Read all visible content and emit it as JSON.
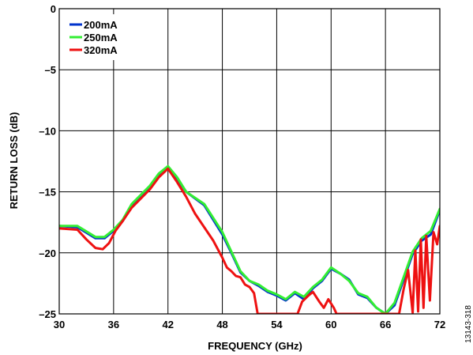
{
  "chart_data": {
    "type": "line",
    "xlabel": "FREQUENCY (GHz)",
    "ylabel": "RETURN LOSS (dB)",
    "xlim": [
      30,
      72
    ],
    "ylim": [
      -25,
      0
    ],
    "x_ticks": [
      "30",
      "36",
      "42",
      "48",
      "54",
      "60",
      "66",
      "72"
    ],
    "y_ticks": [
      "0",
      "–5",
      "–10",
      "–15",
      "–20",
      "–25"
    ],
    "x_tick_values": [
      30,
      36,
      42,
      48,
      54,
      60,
      66,
      72
    ],
    "y_tick_values": [
      0,
      -5,
      -10,
      -15,
      -20,
      -25
    ],
    "grid": true,
    "legend_position": "top-left",
    "figure_id": "13143-318",
    "series": [
      {
        "name": "200mA",
        "color": "#0033cc",
        "x": [
          30,
          32,
          34,
          35,
          36,
          37,
          38,
          40,
          41,
          42,
          43,
          44,
          46,
          48,
          49,
          50,
          51,
          52,
          53,
          54,
          55,
          56,
          57,
          58,
          59,
          60,
          61,
          62,
          63,
          64,
          65,
          66,
          67,
          68,
          69,
          70,
          71,
          72
        ],
        "y": [
          -17.8,
          -17.9,
          -18.8,
          -18.8,
          -18.2,
          -17.4,
          -16.2,
          -14.6,
          -13.6,
          -13.0,
          -13.9,
          -15.0,
          -16.1,
          -18.5,
          -20.0,
          -21.6,
          -22.3,
          -22.7,
          -23.2,
          -23.5,
          -23.9,
          -23.3,
          -23.8,
          -22.9,
          -22.3,
          -21.3,
          -21.7,
          -22.2,
          -23.4,
          -23.7,
          -24.5,
          -25.0,
          -24.3,
          -22.2,
          -20.1,
          -19.0,
          -18.5,
          -16.5
        ]
      },
      {
        "name": "250mA",
        "color": "#33ee33",
        "x": [
          30,
          32,
          34,
          35,
          36,
          37,
          38,
          40,
          41,
          42,
          43,
          44,
          46,
          48,
          49,
          50,
          51,
          52,
          53,
          54,
          55,
          56,
          57,
          58,
          59,
          60,
          61,
          62,
          63,
          64,
          65,
          66,
          67,
          68,
          69,
          70,
          71,
          72
        ],
        "y": [
          -17.8,
          -17.8,
          -18.7,
          -18.7,
          -18.1,
          -17.3,
          -16.0,
          -14.5,
          -13.5,
          -12.9,
          -13.8,
          -15.0,
          -16.0,
          -18.3,
          -19.9,
          -21.5,
          -22.3,
          -22.6,
          -23.1,
          -23.4,
          -23.8,
          -23.2,
          -23.6,
          -22.8,
          -22.2,
          -21.2,
          -21.7,
          -22.3,
          -23.3,
          -23.6,
          -24.5,
          -25.0,
          -24.1,
          -22.0,
          -19.9,
          -18.8,
          -18.2,
          -16.4
        ]
      },
      {
        "name": "320mA",
        "color": "#ee1111",
        "x": [
          30,
          32,
          33,
          34,
          34.8,
          35.5,
          36.2,
          37,
          38,
          40,
          41,
          42,
          43,
          44,
          45,
          46,
          47,
          48,
          48.5,
          49,
          49.5,
          50,
          50.5,
          51,
          51.5,
          51.9,
          56.3,
          56.8,
          57.5,
          58,
          58.7,
          59.2,
          59.7,
          60.3,
          60.6,
          67.5,
          68,
          68.5,
          69,
          69.3,
          69.6,
          69.9,
          70.2,
          70.5,
          70.9,
          71.3,
          71.7,
          72
        ],
        "y": [
          -18.0,
          -18.1,
          -18.9,
          -19.6,
          -19.7,
          -19.2,
          -18.2,
          -17.4,
          -16.3,
          -14.8,
          -13.8,
          -13.1,
          -14.2,
          -15.4,
          -16.8,
          -17.9,
          -19.0,
          -20.4,
          -21.2,
          -21.5,
          -21.9,
          -22.0,
          -22.6,
          -22.8,
          -23.3,
          -25.0,
          -25.0,
          -24.0,
          -23.5,
          -23.2,
          -24.0,
          -24.5,
          -23.8,
          -24.5,
          -25.0,
          -25.0,
          -23.0,
          -21.4,
          -24.9,
          -19.8,
          -24.8,
          -18.9,
          -24.5,
          -18.6,
          -23.9,
          -18.3,
          -19.3,
          -17.8
        ]
      }
    ]
  }
}
